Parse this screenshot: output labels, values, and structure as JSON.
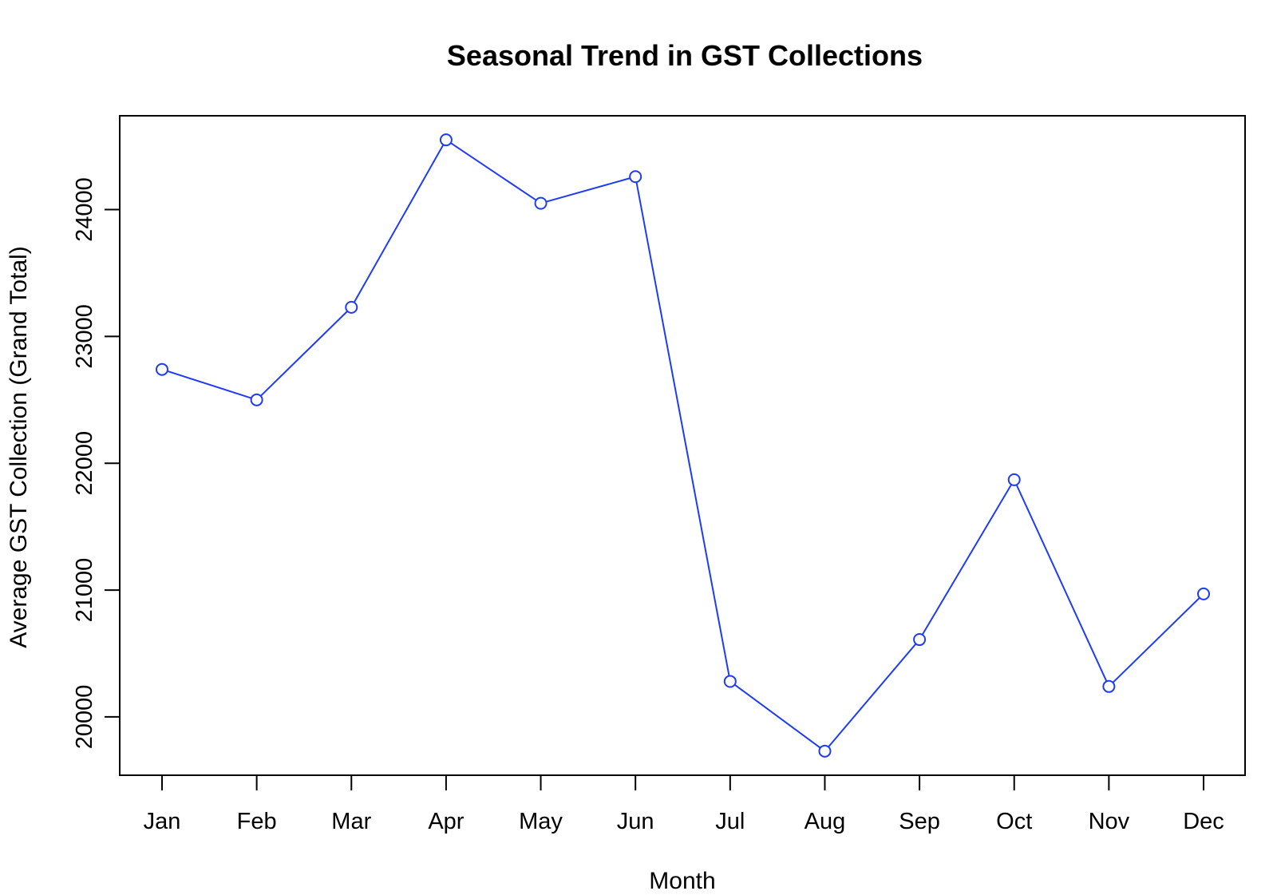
{
  "chart_data": {
    "type": "line",
    "title": "Seasonal Trend in GST Collections",
    "xlabel": "Month",
    "ylabel": "Average GST Collection (Grand Total)",
    "categories": [
      "Jan",
      "Feb",
      "Mar",
      "Apr",
      "May",
      "Jun",
      "Jul",
      "Aug",
      "Sep",
      "Oct",
      "Nov",
      "Dec"
    ],
    "values": [
      22740,
      22500,
      23230,
      24550,
      24050,
      24260,
      20280,
      19730,
      20610,
      21870,
      20240,
      20970
    ],
    "yticks": [
      20000,
      21000,
      22000,
      23000,
      24000
    ],
    "ytick_labels": [
      "20000",
      "21000",
      "22000",
      "23000",
      "24000"
    ],
    "ylim": [
      19540,
      24740
    ],
    "grid": false,
    "line_color": "#1f3cf5",
    "marker": "open-circle"
  }
}
